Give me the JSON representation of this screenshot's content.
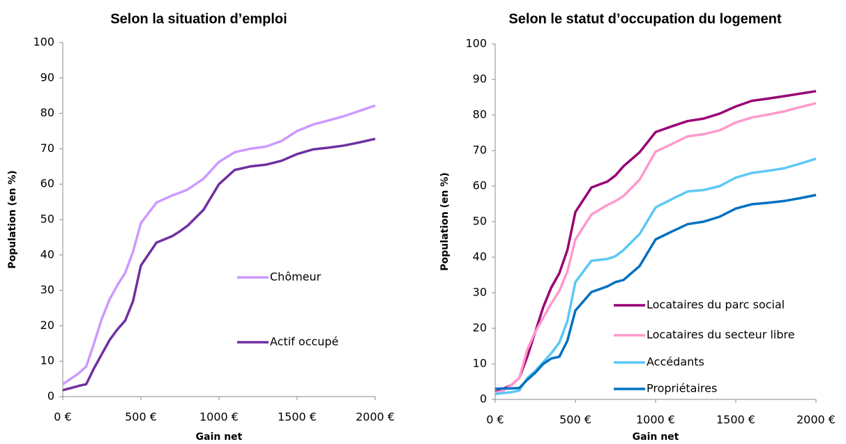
{
  "chart_data": [
    {
      "type": "line",
      "title": "Selon la situation d’emploi",
      "x_label": "Gain net",
      "y_label": "Population (en %)",
      "x": [
        0,
        50,
        100,
        150,
        200,
        250,
        300,
        350,
        400,
        450,
        500,
        600,
        700,
        750,
        800,
        900,
        1000,
        1100,
        1200,
        1300,
        1400,
        1500,
        1600,
        1700,
        1800,
        1900,
        2000
      ],
      "series": [
        {
          "name": "Chômeur",
          "color": "#cc99ff",
          "values": [
            3.5,
            5,
            6.5,
            8.5,
            15,
            22,
            27.5,
            31.5,
            35,
            41,
            49,
            54.8,
            56.8,
            57.6,
            58.5,
            61.5,
            66.3,
            69,
            70,
            70.6,
            72.2,
            75,
            76.8,
            78,
            79.2,
            80.7,
            82.2
          ]
        },
        {
          "name": "Actif occupé",
          "color": "#7030a0",
          "values": [
            1.8,
            2.4,
            3,
            3.5,
            8,
            12,
            16,
            19,
            21.5,
            27,
            37,
            43.5,
            45.3,
            46.7,
            48.3,
            52.7,
            60,
            64,
            65,
            65.5,
            66.6,
            68.5,
            69.8,
            70.3,
            70.9,
            71.8,
            72.8
          ]
        }
      ],
      "xlim": [
        0,
        2000
      ],
      "xticks": [
        {
          "value": 0,
          "label": "0 €"
        },
        {
          "value": 500,
          "label": "500 €"
        },
        {
          "value": 1000,
          "label": "1000 €"
        },
        {
          "value": 1500,
          "label": "1500 €"
        },
        {
          "value": 2000,
          "label": "2000 €"
        }
      ],
      "ylim": [
        0,
        100
      ],
      "yticks": [
        0,
        10,
        20,
        30,
        40,
        50,
        60,
        70,
        80,
        90,
        100
      ],
      "grid": false
    },
    {
      "type": "line",
      "title": "Selon le statut d’occupation du logement",
      "x_label": "Gain net",
      "y_label": "Population (en %)",
      "x": [
        0,
        50,
        100,
        150,
        200,
        250,
        300,
        350,
        400,
        450,
        500,
        600,
        700,
        750,
        800,
        900,
        1000,
        1100,
        1200,
        1300,
        1400,
        1500,
        1600,
        1700,
        1800,
        1900,
        2000
      ],
      "series": [
        {
          "name": "Locataires du parc social",
          "color": "#990073",
          "values": [
            2,
            3,
            4,
            6,
            12,
            19,
            26,
            31.5,
            35.5,
            42,
            52.7,
            59.6,
            61.3,
            63,
            65.6,
            69.5,
            75.2,
            76.8,
            78.3,
            79,
            80.4,
            82.4,
            84,
            84.6,
            85.3,
            86,
            86.7
          ]
        },
        {
          "name": "Locataires du secteur libre",
          "color": "#ff99cc",
          "values": [
            1.8,
            2.5,
            4,
            6,
            14,
            19,
            23,
            27,
            30.5,
            36,
            45,
            52,
            54.7,
            55.8,
            57.2,
            61.8,
            69.7,
            71.8,
            74,
            74.6,
            75.7,
            77.9,
            79.3,
            80.1,
            81,
            82.2,
            83.3
          ]
        },
        {
          "name": "Accédants",
          "color": "#5bc8f5",
          "values": [
            1.5,
            1.8,
            2,
            2.5,
            6,
            8,
            10.5,
            13,
            16,
            22,
            33,
            39,
            39.5,
            40.3,
            42,
            46.5,
            54,
            56.3,
            58.5,
            58.9,
            60,
            62.4,
            63.7,
            64.3,
            65,
            66.3,
            67.7
          ]
        },
        {
          "name": "Propriétaires",
          "color": "#0070c0",
          "values": [
            3,
            3.1,
            3.1,
            3.2,
            5.5,
            7.5,
            10,
            11.5,
            12,
            16.5,
            25,
            30.2,
            31.8,
            33,
            33.6,
            37.5,
            45,
            47.2,
            49.3,
            50,
            51.4,
            53.7,
            54.9,
            55.3,
            55.8,
            56.6,
            57.5
          ]
        }
      ],
      "xlim": [
        0,
        2000
      ],
      "xticks": [
        {
          "value": 0,
          "label": "0 €"
        },
        {
          "value": 500,
          "label": "500 €"
        },
        {
          "value": 1000,
          "label": "1000 €"
        },
        {
          "value": 1500,
          "label": "1500 €"
        },
        {
          "value": 2000,
          "label": "2000 €"
        }
      ],
      "ylim": [
        0,
        100
      ],
      "yticks": [
        0,
        10,
        20,
        30,
        40,
        50,
        60,
        70,
        80,
        90,
        100
      ],
      "grid": false
    }
  ]
}
